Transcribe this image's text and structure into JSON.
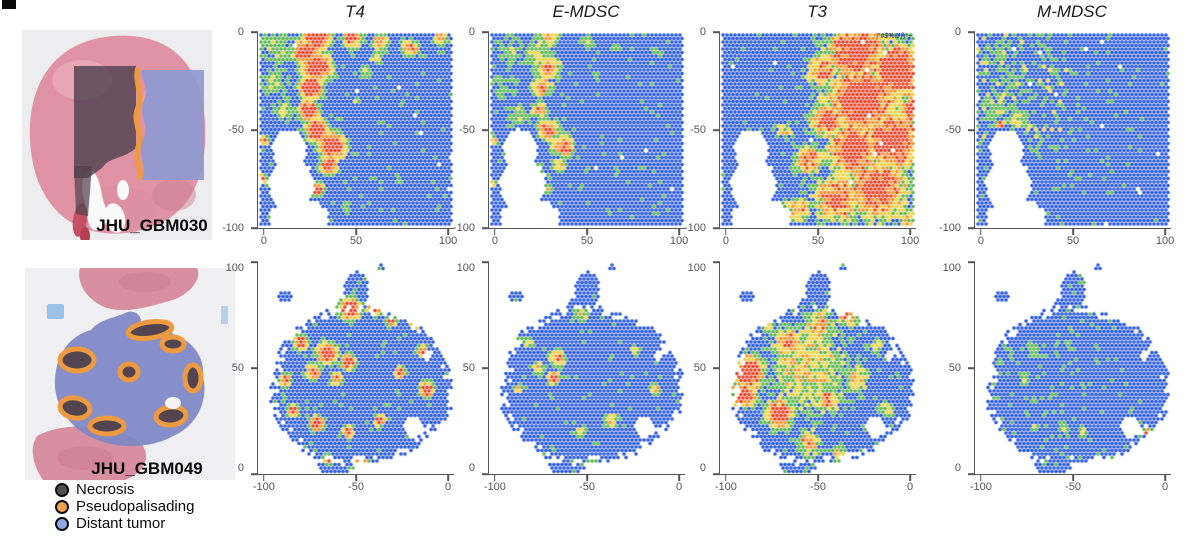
{
  "columns": [
    "T4",
    "E-MDSC",
    "T3",
    "M-MDSC"
  ],
  "samples": [
    {
      "id": "JHU_GBM030"
    },
    {
      "id": "JHU_GBM049"
    }
  ],
  "axes": {
    "row1": {
      "y": [
        "0",
        "-50",
        "-100"
      ],
      "x": [
        "0",
        "50",
        "100"
      ]
    },
    "row2": {
      "y": [
        "100",
        "50",
        "0"
      ],
      "x": [
        "-100",
        "-50",
        "0"
      ]
    }
  },
  "legend": {
    "items": [
      {
        "label": "Necrosis",
        "color": "#4f4f4f"
      },
      {
        "label": "Pseudopalisading",
        "color": "#f1a24b"
      },
      {
        "label": "Distant tumor",
        "color": "#8ea8e2"
      }
    ]
  },
  "heat_colors": {
    "low": "#2152da",
    "mid_low": "#57b54b",
    "mid": "#eecf39",
    "mid_high": "#f0932c",
    "high": "#e93b1f"
  },
  "plots": [
    {
      "sample": "JHU_GBM030",
      "signature": "T4",
      "mask": "notch",
      "seed": 11,
      "noise": 0.1,
      "speckle": [
        0.5,
        0.45,
        1.2,
        0.05
      ],
      "pattern": "high along necrotic boundary band, blue distant tumor",
      "blobs": [
        [
          0.3,
          0.02,
          0.1,
          0.95
        ],
        [
          0.24,
          0.1,
          0.09,
          0.92
        ],
        [
          0.3,
          0.18,
          0.1,
          1.0
        ],
        [
          0.27,
          0.28,
          0.08,
          1.0
        ],
        [
          0.26,
          0.4,
          0.07,
          0.95
        ],
        [
          0.3,
          0.5,
          0.08,
          1.0
        ],
        [
          0.38,
          0.58,
          0.09,
          1.0
        ],
        [
          0.36,
          0.68,
          0.06,
          0.9
        ],
        [
          0.3,
          0.8,
          0.05,
          0.85
        ],
        [
          0.28,
          0.93,
          0.06,
          0.85
        ],
        [
          0.48,
          0.03,
          0.07,
          0.85
        ],
        [
          0.62,
          0.05,
          0.06,
          0.7
        ],
        [
          0.78,
          0.08,
          0.06,
          0.75
        ],
        [
          0.93,
          0.03,
          0.05,
          0.7
        ],
        [
          0.1,
          0.08,
          0.14,
          0.42
        ],
        [
          0.08,
          0.25,
          0.12,
          0.42
        ],
        [
          0.14,
          0.4,
          0.1,
          0.45
        ],
        [
          0.55,
          0.2,
          0.05,
          0.5
        ],
        [
          0.5,
          0.35,
          0.04,
          0.45
        ],
        [
          0.03,
          0.55,
          0.03,
          0.85
        ],
        [
          0.02,
          0.75,
          0.03,
          0.8
        ],
        [
          0.45,
          0.9,
          0.04,
          0.45
        ],
        [
          0.72,
          0.75,
          0.03,
          0.4
        ],
        [
          0.6,
          0.13,
          0.05,
          0.55
        ]
      ]
    },
    {
      "sample": "JHU_GBM030",
      "signature": "E-MDSC",
      "mask": "notch",
      "seed": 22,
      "noise": 0.1,
      "speckle": [
        0.4,
        0.4,
        1.0,
        0.05
      ],
      "pattern": "moderate along boundary, mostly blue",
      "blobs": [
        [
          0.3,
          0.02,
          0.09,
          0.62
        ],
        [
          0.24,
          0.1,
          0.08,
          0.55
        ],
        [
          0.3,
          0.18,
          0.09,
          0.72
        ],
        [
          0.27,
          0.28,
          0.07,
          0.75
        ],
        [
          0.26,
          0.4,
          0.06,
          0.7
        ],
        [
          0.3,
          0.5,
          0.07,
          0.85
        ],
        [
          0.38,
          0.58,
          0.08,
          0.75
        ],
        [
          0.36,
          0.68,
          0.05,
          0.62
        ],
        [
          0.3,
          0.8,
          0.04,
          0.6
        ],
        [
          0.28,
          0.93,
          0.05,
          0.6
        ],
        [
          0.12,
          0.1,
          0.14,
          0.38
        ],
        [
          0.08,
          0.28,
          0.12,
          0.38
        ],
        [
          0.15,
          0.42,
          0.1,
          0.42
        ],
        [
          0.5,
          0.05,
          0.06,
          0.45
        ],
        [
          0.65,
          0.08,
          0.05,
          0.4
        ],
        [
          0.85,
          0.1,
          0.05,
          0.38
        ],
        [
          0.03,
          0.55,
          0.03,
          0.7
        ],
        [
          0.02,
          0.78,
          0.03,
          0.62
        ],
        [
          0.4,
          0.6,
          0.035,
          0.95
        ],
        [
          0.55,
          0.22,
          0.04,
          0.4
        ]
      ]
    },
    {
      "sample": "JHU_GBM030",
      "signature": "T3",
      "mask": "notch",
      "seed": 33,
      "noise": 0.16,
      "speckle": [
        0.3,
        0.3,
        0.8,
        0.04
      ],
      "annotation": "!\"#$%&'()*+",
      "pattern": "high across right two-thirds (tumor core), blue left",
      "blobs": [
        [
          0.7,
          0.1,
          0.2,
          0.92
        ],
        [
          0.9,
          0.2,
          0.18,
          1.0
        ],
        [
          0.72,
          0.35,
          0.22,
          1.0
        ],
        [
          0.88,
          0.55,
          0.2,
          0.95
        ],
        [
          0.68,
          0.6,
          0.18,
          0.95
        ],
        [
          0.8,
          0.8,
          0.2,
          0.9
        ],
        [
          0.6,
          0.85,
          0.15,
          0.85
        ],
        [
          0.55,
          0.45,
          0.12,
          0.85
        ],
        [
          0.52,
          0.2,
          0.1,
          0.8
        ],
        [
          0.45,
          0.65,
          0.1,
          0.8
        ],
        [
          0.4,
          0.9,
          0.08,
          0.7
        ],
        [
          0.33,
          0.5,
          0.06,
          0.55
        ],
        [
          0.95,
          0.95,
          0.08,
          0.55
        ],
        [
          0.99,
          0.4,
          0.1,
          0.9
        ]
      ]
    },
    {
      "sample": "JHU_GBM030",
      "signature": "M-MDSC",
      "mask": "notch",
      "seed": 44,
      "noise": 0.1,
      "speckle": [
        0.18,
        0.3,
        0.45,
        0.28
      ],
      "pattern": "mostly blue, green speckle upper-left, small red focus",
      "blobs": [
        [
          0.12,
          0.12,
          0.15,
          0.34
        ],
        [
          0.2,
          0.25,
          0.12,
          0.36
        ],
        [
          0.1,
          0.4,
          0.12,
          0.42
        ],
        [
          0.22,
          0.45,
          0.08,
          0.5
        ],
        [
          0.13,
          0.47,
          0.025,
          0.95
        ],
        [
          0.3,
          0.6,
          0.05,
          0.38
        ],
        [
          0.05,
          0.75,
          0.04,
          0.36
        ],
        [
          0.85,
          0.45,
          0.02,
          0.38
        ],
        [
          0.35,
          0.05,
          0.1,
          0.3
        ]
      ]
    },
    {
      "sample": "JHU_GBM049",
      "signature": "T4",
      "mask": "blob",
      "seed": 55,
      "noise": 0.1,
      "speckle": [
        0.5,
        0.5,
        0.9,
        0.05
      ],
      "pattern": "red patches around pseudopalisading rings on blue blob",
      "blobs": [
        [
          0.47,
          0.22,
          0.07,
          1.0
        ],
        [
          0.6,
          0.2,
          0.06,
          0.95
        ],
        [
          0.68,
          0.28,
          0.04,
          0.8
        ],
        [
          0.22,
          0.38,
          0.05,
          0.9
        ],
        [
          0.35,
          0.43,
          0.07,
          0.95
        ],
        [
          0.46,
          0.47,
          0.05,
          0.9
        ],
        [
          0.28,
          0.52,
          0.05,
          0.85
        ],
        [
          0.14,
          0.56,
          0.04,
          0.85
        ],
        [
          0.4,
          0.55,
          0.04,
          0.8
        ],
        [
          0.18,
          0.7,
          0.04,
          0.85
        ],
        [
          0.3,
          0.76,
          0.05,
          0.9
        ],
        [
          0.46,
          0.8,
          0.04,
          0.85
        ],
        [
          0.62,
          0.75,
          0.04,
          0.8
        ],
        [
          0.72,
          0.52,
          0.04,
          0.85
        ],
        [
          0.84,
          0.42,
          0.04,
          0.8
        ],
        [
          0.86,
          0.6,
          0.05,
          0.9
        ],
        [
          0.52,
          0.95,
          0.05,
          0.8
        ],
        [
          0.36,
          0.93,
          0.04,
          0.75
        ],
        [
          0.8,
          0.3,
          0.03,
          0.7
        ]
      ]
    },
    {
      "sample": "JHU_GBM049",
      "signature": "E-MDSC",
      "mask": "blob",
      "seed": 66,
      "noise": 0.1,
      "speckle": [
        0.5,
        0.5,
        0.8,
        0.05
      ],
      "pattern": "sparse green/orange foci, mostly blue",
      "blobs": [
        [
          0.35,
          0.45,
          0.06,
          0.72
        ],
        [
          0.33,
          0.55,
          0.04,
          0.95
        ],
        [
          0.25,
          0.5,
          0.05,
          0.6
        ],
        [
          0.47,
          0.25,
          0.05,
          0.55
        ],
        [
          0.6,
          0.22,
          0.04,
          0.5
        ],
        [
          0.2,
          0.38,
          0.04,
          0.55
        ],
        [
          0.62,
          0.75,
          0.05,
          0.6
        ],
        [
          0.75,
          0.42,
          0.04,
          0.55
        ],
        [
          0.47,
          0.8,
          0.04,
          0.55
        ],
        [
          0.85,
          0.6,
          0.04,
          0.6
        ],
        [
          0.15,
          0.6,
          0.03,
          0.6
        ],
        [
          0.52,
          0.95,
          0.04,
          0.5
        ]
      ]
    },
    {
      "sample": "JHU_GBM049",
      "signature": "T3",
      "mask": "blob",
      "seed": 77,
      "noise": 0.15,
      "speckle": [
        0.5,
        0.5,
        0.9,
        0.05
      ],
      "pattern": "widespread yellow/orange with red core left-center",
      "blobs": [
        [
          0.45,
          0.5,
          0.3,
          0.55
        ],
        [
          0.15,
          0.52,
          0.1,
          1.0
        ],
        [
          0.12,
          0.62,
          0.08,
          0.95
        ],
        [
          0.3,
          0.72,
          0.09,
          0.95
        ],
        [
          0.35,
          0.38,
          0.09,
          0.8
        ],
        [
          0.5,
          0.3,
          0.1,
          0.7
        ],
        [
          0.65,
          0.25,
          0.07,
          0.75
        ],
        [
          0.7,
          0.55,
          0.08,
          0.65
        ],
        [
          0.55,
          0.65,
          0.08,
          0.75
        ],
        [
          0.45,
          0.85,
          0.08,
          0.7
        ],
        [
          0.8,
          0.4,
          0.05,
          0.6
        ],
        [
          0.25,
          0.28,
          0.06,
          0.6
        ],
        [
          0.6,
          0.9,
          0.05,
          0.6
        ],
        [
          0.85,
          0.7,
          0.05,
          0.55
        ]
      ]
    },
    {
      "sample": "JHU_GBM049",
      "signature": "M-MDSC",
      "mask": "blob",
      "seed": 88,
      "noise": 0.08,
      "speckle": [
        0.35,
        0.5,
        0.55,
        0.12
      ],
      "pattern": "almost entirely blue, faint green patches, tiny orange foci at edges",
      "blobs": [
        [
          0.3,
          0.42,
          0.07,
          0.4
        ],
        [
          0.25,
          0.55,
          0.06,
          0.42
        ],
        [
          0.35,
          0.3,
          0.05,
          0.35
        ],
        [
          0.45,
          0.78,
          0.05,
          0.45
        ],
        [
          0.55,
          0.8,
          0.04,
          0.5
        ],
        [
          0.07,
          0.48,
          0.02,
          0.9
        ],
        [
          0.88,
          0.8,
          0.025,
          0.85
        ],
        [
          0.3,
          0.78,
          0.03,
          0.5
        ],
        [
          0.6,
          0.3,
          0.04,
          0.3
        ]
      ]
    }
  ]
}
